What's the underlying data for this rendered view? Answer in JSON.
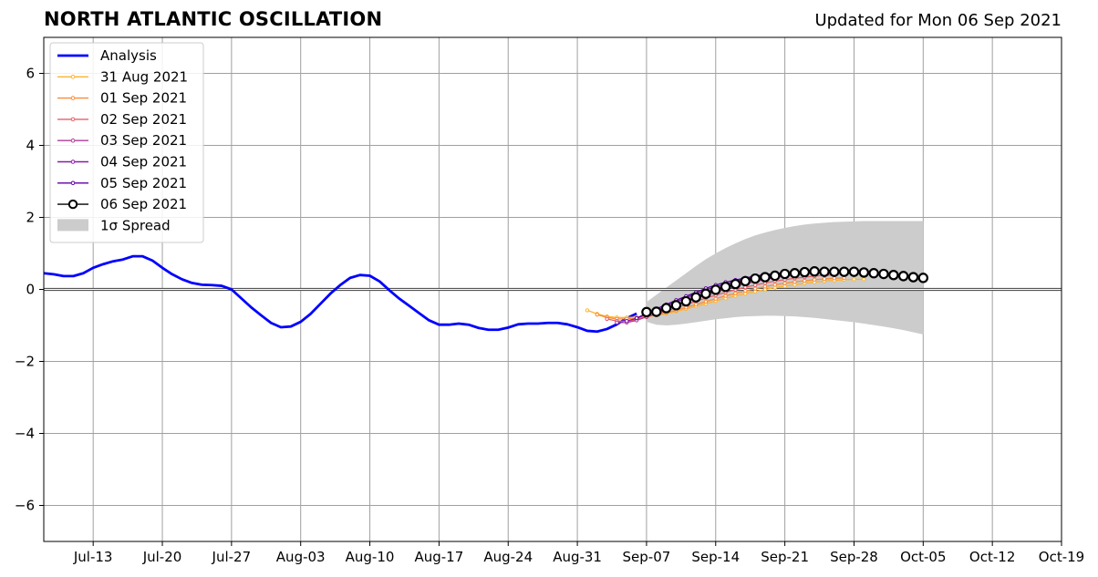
{
  "header": {
    "title": "NORTH ATLANTIC OSCILLATION",
    "updated": "Updated for Mon 06 Sep 2021"
  },
  "chart_data": {
    "type": "line",
    "title": "NORTH ATLANTIC OSCILLATION",
    "subtitle": "Updated for Mon 06 Sep 2021",
    "xlabel": "",
    "ylabel": "",
    "xlim": [
      "2021-07-08",
      "2021-10-19"
    ],
    "ylim": [
      -7,
      7
    ],
    "x_tick_labels": [
      "Jul-13",
      "Jul-20",
      "Jul-27",
      "Aug-03",
      "Aug-10",
      "Aug-17",
      "Aug-24",
      "Aug-31",
      "Sep-07",
      "Sep-14",
      "Sep-21",
      "Sep-28",
      "Oct-05",
      "Oct-12",
      "Oct-19"
    ],
    "x_tick_dates": [
      "2021-07-13",
      "2021-07-20",
      "2021-07-27",
      "2021-08-03",
      "2021-08-10",
      "2021-08-17",
      "2021-08-24",
      "2021-08-31",
      "2021-09-07",
      "2021-09-14",
      "2021-09-21",
      "2021-09-28",
      "2021-10-05",
      "2021-10-12",
      "2021-10-19"
    ],
    "y_ticks": [
      -6,
      -4,
      -2,
      0,
      2,
      4,
      6
    ],
    "y_tick_labels": [
      "−6",
      "−4",
      "−2",
      "0",
      "2",
      "4",
      "6"
    ],
    "grid": true,
    "legend_position": "top-left",
    "legend": {
      "analysis": "Analysis",
      "f0": "31 Aug 2021",
      "f1": "01 Sep 2021",
      "f2": "02 Sep 2021",
      "f3": "03 Sep 2021",
      "f4": "04 Sep 2021",
      "f5": "05 Sep 2021",
      "f6": "06 Sep 2021",
      "spread": "1σ Spread"
    },
    "analysis": {
      "name": "Analysis",
      "color": "#0000ff",
      "x": [
        "2021-07-08",
        "2021-07-09",
        "2021-07-10",
        "2021-07-11",
        "2021-07-12",
        "2021-07-13",
        "2021-07-14",
        "2021-07-15",
        "2021-07-16",
        "2021-07-17",
        "2021-07-18",
        "2021-07-19",
        "2021-07-20",
        "2021-07-21",
        "2021-07-22",
        "2021-07-23",
        "2021-07-24",
        "2021-07-25",
        "2021-07-26",
        "2021-07-27",
        "2021-07-28",
        "2021-07-29",
        "2021-07-30",
        "2021-07-31",
        "2021-08-01",
        "2021-08-02",
        "2021-08-03",
        "2021-08-04",
        "2021-08-05",
        "2021-08-06",
        "2021-08-07",
        "2021-08-08",
        "2021-08-09",
        "2021-08-10",
        "2021-08-11",
        "2021-08-12",
        "2021-08-13",
        "2021-08-14",
        "2021-08-15",
        "2021-08-16",
        "2021-08-17",
        "2021-08-18",
        "2021-08-19",
        "2021-08-20",
        "2021-08-21",
        "2021-08-22",
        "2021-08-23",
        "2021-08-24",
        "2021-08-25",
        "2021-08-26",
        "2021-08-27",
        "2021-08-28",
        "2021-08-29",
        "2021-08-30",
        "2021-08-31",
        "2021-09-01",
        "2021-09-02",
        "2021-09-03",
        "2021-09-04",
        "2021-09-05",
        "2021-09-06"
      ],
      "y": [
        0.45,
        0.42,
        0.37,
        0.37,
        0.45,
        0.6,
        0.7,
        0.78,
        0.83,
        0.92,
        0.92,
        0.8,
        0.6,
        0.42,
        0.28,
        0.18,
        0.13,
        0.12,
        0.1,
        0.0,
        -0.25,
        -0.5,
        -0.72,
        -0.93,
        -1.05,
        -1.03,
        -0.9,
        -0.68,
        -0.4,
        -0.12,
        0.12,
        0.32,
        0.4,
        0.38,
        0.22,
        -0.03,
        -0.26,
        -0.46,
        -0.66,
        -0.86,
        -0.98,
        -0.98,
        -0.95,
        -0.98,
        -1.07,
        -1.12,
        -1.12,
        -1.06,
        -0.97,
        -0.95,
        -0.95,
        -0.93,
        -0.93,
        -0.97,
        -1.05,
        -1.15,
        -1.17,
        -1.1,
        -0.97,
        -0.8,
        -0.67
      ]
    },
    "forecasts": [
      {
        "name": "31 Aug 2021",
        "color": "#fdb42f",
        "start": "2021-09-01",
        "y": [
          -0.58,
          -0.68,
          -0.75,
          -0.78,
          -0.78,
          -0.77,
          -0.76,
          -0.72,
          -0.67,
          -0.61,
          -0.54,
          -0.47,
          -0.4,
          -0.32,
          -0.25,
          -0.18,
          -0.12,
          -0.06,
          0.0,
          0.05,
          0.09,
          0.13,
          0.17,
          0.2,
          0.23,
          0.25,
          0.27,
          0.28,
          0.28
        ]
      },
      {
        "name": "01 Sep 2021",
        "color": "#f98c38",
        "start": "2021-09-02",
        "y": [
          -0.7,
          -0.78,
          -0.82,
          -0.82,
          -0.8,
          -0.76,
          -0.71,
          -0.65,
          -0.58,
          -0.5,
          -0.42,
          -0.34,
          -0.26,
          -0.18,
          -0.11,
          -0.04,
          0.02,
          0.08,
          0.13,
          0.17,
          0.21,
          0.24,
          0.27,
          0.29,
          0.31,
          0.32
        ]
      },
      {
        "name": "02 Sep 2021",
        "color": "#e46067",
        "start": "2021-09-03",
        "y": [
          -0.82,
          -0.88,
          -0.88,
          -0.84,
          -0.77,
          -0.68,
          -0.6,
          -0.51,
          -0.42,
          -0.33,
          -0.24,
          -0.16,
          -0.08,
          -0.01,
          0.06,
          0.12,
          0.18,
          0.23,
          0.27,
          0.31,
          0.34,
          0.37,
          0.39,
          0.4
        ]
      },
      {
        "name": "03 Sep 2021",
        "color": "#b03d97",
        "start": "2021-09-04",
        "y": [
          -0.92,
          -0.92,
          -0.86,
          -0.76,
          -0.66,
          -0.56,
          -0.45,
          -0.35,
          -0.25,
          -0.16,
          -0.07,
          0.01,
          0.09,
          0.16,
          0.22,
          0.28,
          0.33,
          0.37,
          0.41,
          0.44,
          0.46,
          0.48
        ]
      },
      {
        "name": "04 Sep 2021",
        "color": "#8a19a8",
        "start": "2021-09-05",
        "y": [
          -0.88,
          -0.8,
          -0.69,
          -0.58,
          -0.46,
          -0.34,
          -0.23,
          -0.12,
          -0.02,
          0.07,
          0.15,
          0.22,
          0.29,
          0.34,
          0.39,
          0.43,
          0.46,
          0.48,
          0.49,
          0.5,
          0.5
        ]
      },
      {
        "name": "05 Sep 2021",
        "color": "#5c01a6",
        "start": "2021-09-06",
        "y": [
          -0.8,
          -0.66,
          -0.54,
          -0.42,
          -0.3,
          -0.19,
          -0.08,
          0.03,
          0.12,
          0.2,
          0.26,
          0.32,
          0.37,
          0.41,
          0.44,
          0.46,
          0.48,
          0.49,
          0.5
        ]
      },
      {
        "name": "06 Sep 2021",
        "color": "#000000",
        "start": "2021-09-07",
        "y": [
          -0.63,
          -0.62,
          -0.52,
          -0.44,
          -0.33,
          -0.22,
          -0.12,
          -0.01,
          0.07,
          0.15,
          0.23,
          0.3,
          0.34,
          0.38,
          0.43,
          0.45,
          0.48,
          0.5,
          0.49,
          0.49,
          0.49,
          0.49,
          0.47,
          0.45,
          0.43,
          0.4,
          0.37,
          0.34,
          0.32
        ]
      }
    ],
    "spread": {
      "name": "1σ Spread",
      "color": "#cccccc",
      "start": "2021-09-07",
      "upper": [
        -0.35,
        -0.15,
        0.05,
        0.25,
        0.45,
        0.65,
        0.84,
        1.0,
        1.15,
        1.28,
        1.4,
        1.5,
        1.58,
        1.65,
        1.71,
        1.76,
        1.8,
        1.83,
        1.85,
        1.87,
        1.88,
        1.89,
        1.9,
        1.9,
        1.9,
        1.9,
        1.9,
        1.9,
        1.9
      ],
      "lower": [
        -0.9,
        -0.98,
        -1.0,
        -0.98,
        -0.95,
        -0.91,
        -0.87,
        -0.83,
        -0.8,
        -0.77,
        -0.75,
        -0.74,
        -0.73,
        -0.73,
        -0.74,
        -0.75,
        -0.77,
        -0.79,
        -0.82,
        -0.85,
        -0.88,
        -0.91,
        -0.95,
        -0.99,
        -1.03,
        -1.08,
        -1.13,
        -1.19,
        -1.25
      ]
    }
  }
}
